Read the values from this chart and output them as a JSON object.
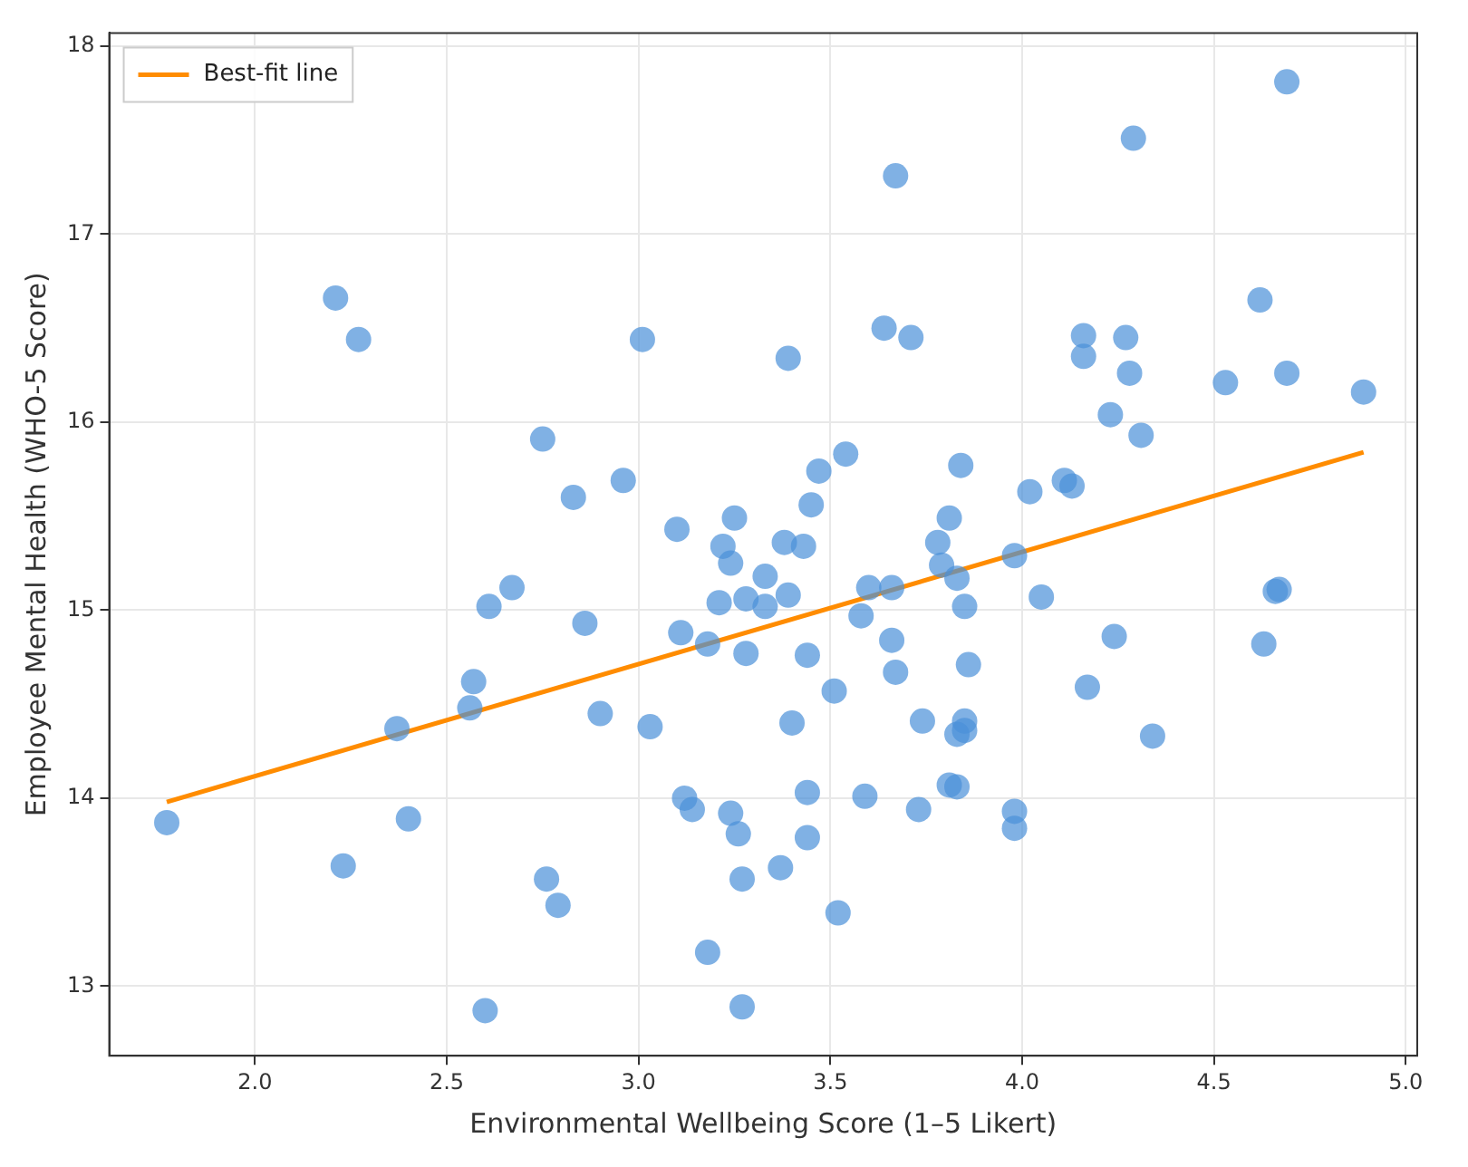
{
  "chart_data": {
    "type": "scatter",
    "xlabel": "Environmental Wellbeing Score (1–5 Likert)",
    "ylabel": "Employee Mental Health (WHO-5 Score)",
    "xlim": [
      1.62,
      5.03
    ],
    "ylim": [
      12.63,
      18.07
    ],
    "xticks": [
      {
        "value": 2,
        "label": "2.0"
      },
      {
        "value": 2.5,
        "label": "2.5"
      },
      {
        "value": 3,
        "label": "3.0"
      },
      {
        "value": 3.5,
        "label": "3.5"
      },
      {
        "value": 4,
        "label": "4.0"
      },
      {
        "value": 4.5,
        "label": "4.5"
      },
      {
        "value": 5,
        "label": "5.0"
      }
    ],
    "yticks": [
      13,
      14,
      15,
      16,
      17,
      18
    ],
    "grid": true,
    "legend": "top left",
    "series": [
      {
        "marker": "circle",
        "color": "#4a90d9",
        "x": [
          1.77,
          2.21,
          2.27,
          2.23,
          2.37,
          2.4,
          2.57,
          2.56,
          2.61,
          2.67,
          2.6,
          2.75,
          2.83,
          2.86,
          2.9,
          2.76,
          2.79,
          2.96,
          3.01,
          3.03,
          3.1,
          3.11,
          3.12,
          3.14,
          3.18,
          3.18,
          3.21,
          3.22,
          3.24,
          3.25,
          3.24,
          3.26,
          3.28,
          3.28,
          3.27,
          3.27,
          3.33,
          3.33,
          3.38,
          3.39,
          3.39,
          3.4,
          3.37,
          3.43,
          3.44,
          3.44,
          3.44,
          3.45,
          3.47,
          3.51,
          3.52,
          3.54,
          3.58,
          3.6,
          3.59,
          3.64,
          3.66,
          3.66,
          3.67,
          3.67,
          3.71,
          3.73,
          3.74,
          3.78,
          3.79,
          3.81,
          3.83,
          3.81,
          3.83,
          3.84,
          3.83,
          3.85,
          3.85,
          3.85,
          3.86,
          3.98,
          3.98,
          3.98,
          4.02,
          4.05,
          4.11,
          4.13,
          4.16,
          4.16,
          4.17,
          4.23,
          4.24,
          4.27,
          4.28,
          4.29,
          4.31,
          4.34,
          4.53,
          4.62,
          4.63,
          4.66,
          4.67,
          4.69,
          4.69,
          4.89
        ],
        "values": [
          13.87,
          16.66,
          16.44,
          13.64,
          14.37,
          13.89,
          14.62,
          14.48,
          15.02,
          15.12,
          12.87,
          15.91,
          15.6,
          14.93,
          14.45,
          13.57,
          13.43,
          15.69,
          16.44,
          14.38,
          15.43,
          14.88,
          14.0,
          13.94,
          14.82,
          13.18,
          15.04,
          15.34,
          15.25,
          15.49,
          13.92,
          13.81,
          15.06,
          14.77,
          13.57,
          12.89,
          15.18,
          15.02,
          15.36,
          15.08,
          16.34,
          14.4,
          13.63,
          15.34,
          14.76,
          14.03,
          13.79,
          15.56,
          15.74,
          14.57,
          13.39,
          15.83,
          14.97,
          15.12,
          14.01,
          16.5,
          15.12,
          14.84,
          14.67,
          17.31,
          16.45,
          13.94,
          14.41,
          15.36,
          15.24,
          15.49,
          14.34,
          14.07,
          14.06,
          15.77,
          15.17,
          15.02,
          14.41,
          14.36,
          14.71,
          13.93,
          13.84,
          15.29,
          15.63,
          15.07,
          15.69,
          15.66,
          16.46,
          16.35,
          14.59,
          16.04,
          14.86,
          16.45,
          16.26,
          17.51,
          15.93,
          14.33,
          16.21,
          16.65,
          14.82,
          15.1,
          15.11,
          17.81,
          16.26,
          16.16
        ]
      },
      {
        "type": "line",
        "name": "Best-fit line",
        "color": "#ff8c00",
        "x": [
          1.77,
          4.89
        ],
        "values": [
          13.98,
          15.84
        ]
      }
    ]
  }
}
